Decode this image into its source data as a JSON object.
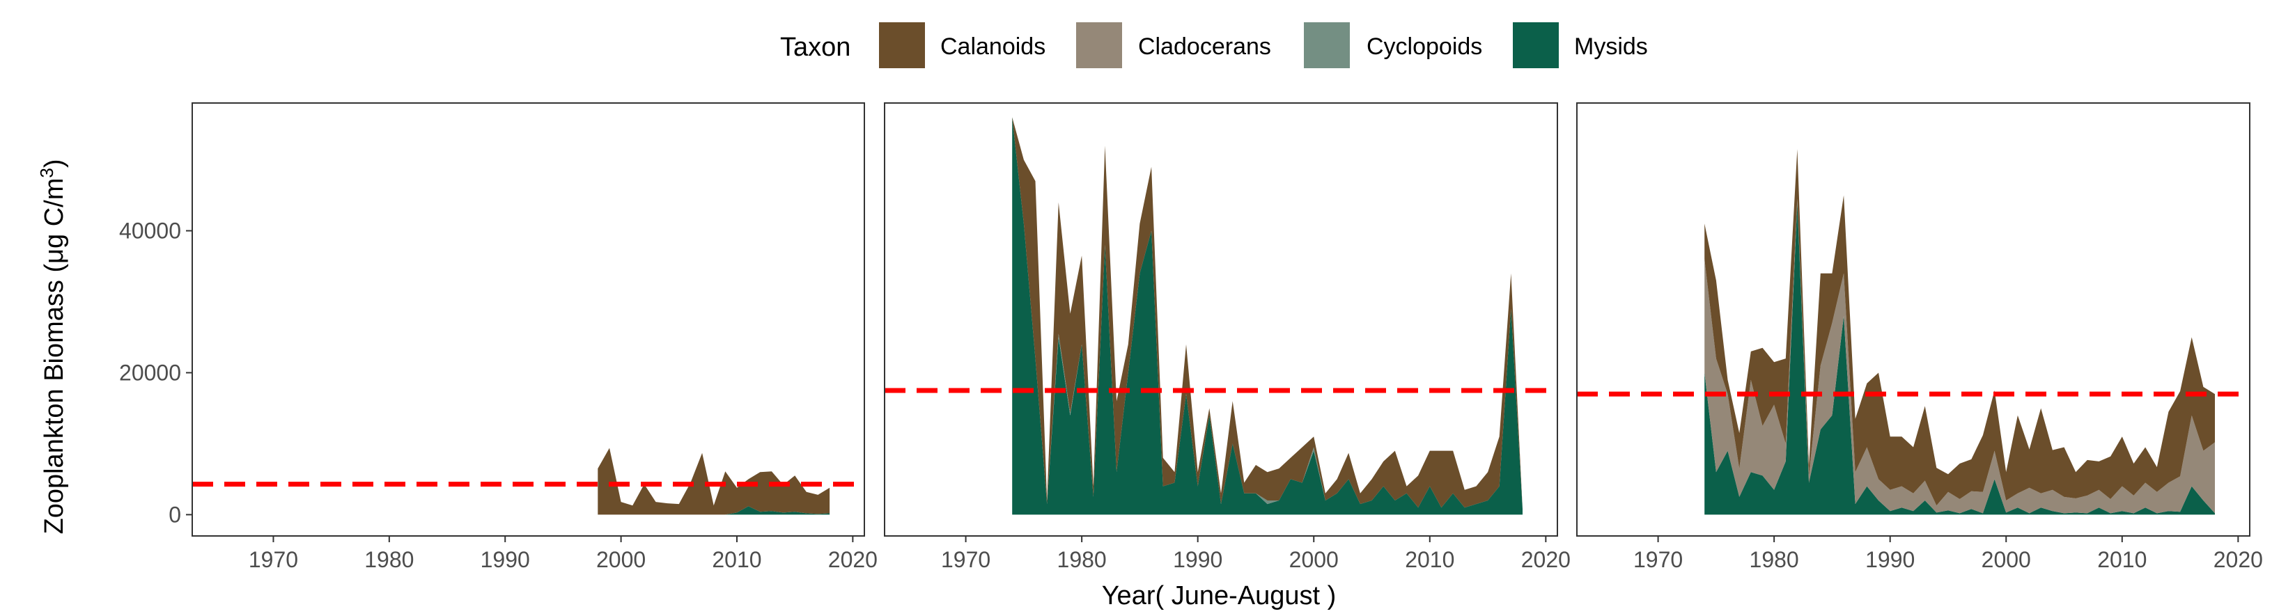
{
  "legend": {
    "title": "Taxon",
    "items": [
      {
        "label": "Calanoids",
        "color": "#6B4E2B"
      },
      {
        "label": "Cladocerans",
        "color": "#958878"
      },
      {
        "label": "Cyclopoids",
        "color": "#748F83"
      },
      {
        "label": "Mysids",
        "color": "#0B604A"
      }
    ]
  },
  "axes": {
    "xlabel": "Year( June-August )",
    "ylabel_text": "Zooplankton Biomass (μg C/m",
    "ylabel_sup": "3",
    "ylabel_close": ")"
  },
  "colors": {
    "Calanoids": "#6B4E2B",
    "Cladocerans": "#958878",
    "Cyclopoids": "#748F83",
    "Mysids": "#0B604A",
    "reference_line": "#FF0000"
  },
  "chart_data": {
    "type": "area",
    "stacking": "stacked",
    "x_ticks": [
      1970,
      1980,
      1990,
      2000,
      2010,
      2020
    ],
    "y_ticks": [
      0,
      20000,
      40000
    ],
    "y_tick_labels": [
      "0",
      "20000",
      "40000"
    ],
    "xlim": [
      1963,
      2021
    ],
    "ylim": [
      -3000,
      58000
    ],
    "grid": false,
    "legend_position": "top",
    "panels": [
      {
        "reference_line": 4300,
        "x": [
          1998,
          1999,
          2000,
          2001,
          2002,
          2003,
          2004,
          2005,
          2006,
          2007,
          2008,
          2009,
          2010,
          2011,
          2012,
          2013,
          2014,
          2015,
          2016,
          2017,
          2018
        ],
        "series": [
          {
            "name": "Mysids",
            "values": [
              0,
              0,
              0,
              0,
              0,
              0,
              0,
              0,
              0,
              0,
              0,
              0,
              300,
              1200,
              400,
              500,
              300,
              400,
              200,
              100,
              200
            ]
          },
          {
            "name": "Cyclopoids",
            "values": [
              0,
              0,
              0,
              0,
              0,
              0,
              0,
              0,
              0,
              0,
              0,
              0,
              0,
              0,
              0,
              0,
              0,
              0,
              0,
              0,
              0
            ]
          },
          {
            "name": "Cladocerans",
            "values": [
              0,
              0,
              0,
              0,
              0,
              0,
              0,
              0,
              0,
              0,
              0,
              0,
              0,
              0,
              0,
              0,
              0,
              0,
              0,
              0,
              0
            ]
          },
          {
            "name": "Calanoids",
            "values": [
              6500,
              9400,
              1800,
              1300,
              4300,
              1800,
              1600,
              1500,
              4500,
              8700,
              1300,
              6100,
              3500,
              3800,
              5600,
              5600,
              3900,
              5100,
              3000,
              2700,
              3600
            ]
          }
        ]
      },
      {
        "reference_line": 17500,
        "x": [
          1974,
          1975,
          1976,
          1977,
          1978,
          1979,
          1980,
          1981,
          1982,
          1983,
          1984,
          1985,
          1986,
          1987,
          1988,
          1989,
          1990,
          1991,
          1992,
          1993,
          1994,
          1995,
          1996,
          1997,
          1998,
          1999,
          2000,
          2001,
          2002,
          2003,
          2004,
          2005,
          2006,
          2007,
          2008,
          2009,
          2010,
          2011,
          2012,
          2013,
          2014,
          2015,
          2016,
          2017,
          2018
        ],
        "series": [
          {
            "name": "Mysids",
            "values": [
              56000,
              41000,
              22000,
              1500,
              25000,
              14000,
              24000,
              2500,
              38000,
              6000,
              20000,
              34000,
              40000,
              4000,
              4500,
              17000,
              4000,
              14000,
              1500,
              10000,
              3000,
              3000,
              1500,
              2000,
              5000,
              4500,
              9000,
              2000,
              3000,
              5000,
              1500,
              2000,
              4000,
              2000,
              3000,
              1000,
              4000,
              1000,
              3000,
              1000,
              1500,
              2000,
              4000,
              29000,
              800
            ]
          },
          {
            "name": "Cyclopoids",
            "values": [
              0,
              0,
              0,
              0,
              500,
              300,
              0,
              0,
              0,
              0,
              0,
              0,
              0,
              0,
              0,
              0,
              0,
              0,
              0,
              0,
              0,
              0,
              500,
              0,
              0,
              0,
              500,
              0,
              0,
              0,
              0,
              0,
              0,
              0,
              0,
              0,
              0,
              0,
              0,
              0,
              0,
              0,
              0,
              0,
              0
            ]
          },
          {
            "name": "Cladocerans",
            "values": [
              0,
              0,
              0,
              0,
              0,
              0,
              0,
              0,
              0,
              0,
              0,
              0,
              0,
              0,
              0,
              0,
              0,
              0,
              0,
              0,
              0,
              0,
              0,
              0,
              0,
              0,
              0,
              0,
              0,
              0,
              0,
              0,
              0,
              0,
              0,
              0,
              0,
              0,
              0,
              0,
              0,
              0,
              0,
              0,
              0
            ]
          },
          {
            "name": "Calanoids",
            "values": [
              0,
              9000,
              25000,
              500,
              18500,
              14000,
              12500,
              1500,
              14000,
              10000,
              4000,
              7000,
              9000,
              4000,
              1500,
              7000,
              2000,
              1000,
              1500,
              6000,
              1500,
              4000,
              4000,
              4500,
              3000,
              5000,
              1500,
              1000,
              2000,
              3700,
              1500,
              3000,
              3500,
              7000,
              1000,
              4500,
              5000,
              8000,
              6000,
              2500,
              2500,
              4000,
              7000,
              5000,
              0
            ]
          }
        ]
      },
      {
        "reference_line": 17000,
        "x": [
          1974,
          1975,
          1976,
          1977,
          1978,
          1979,
          1980,
          1981,
          1982,
          1983,
          1984,
          1985,
          1986,
          1987,
          1988,
          1989,
          1990,
          1991,
          1992,
          1993,
          1994,
          1995,
          1996,
          1997,
          1998,
          1999,
          2000,
          2001,
          2002,
          2003,
          2004,
          2005,
          2006,
          2007,
          2008,
          2009,
          2010,
          2011,
          2012,
          2013,
          2014,
          2015,
          2016,
          2017,
          2018
        ],
        "series": [
          {
            "name": "Mysids",
            "values": [
              20000,
              6000,
              9000,
              2500,
              6000,
              5500,
              3500,
              7500,
              44000,
              4500,
              12000,
              14000,
              28000,
              1500,
              4000,
              2000,
              500,
              1000,
              500,
              2000,
              300,
              600,
              200,
              800,
              200,
              5000,
              300,
              1000,
              200,
              1000,
              500,
              200,
              300,
              200,
              1000,
              200,
              500,
              200,
              1000,
              200,
              500,
              400,
              4000,
              2000,
              200
            ]
          },
          {
            "name": "Cyclopoids",
            "values": [
              0,
              0,
              0,
              0,
              0,
              0,
              0,
              0,
              0,
              0,
              0,
              0,
              0,
              0,
              0,
              0,
              0,
              0,
              0,
              0,
              0,
              0,
              0,
              0,
              0,
              0,
              0,
              0,
              0,
              0,
              0,
              0,
              0,
              0,
              0,
              0,
              0,
              0,
              0,
              0,
              0,
              0,
              0,
              0,
              0
            ]
          },
          {
            "name": "Cladocerans",
            "values": [
              16000,
              16000,
              8000,
              4000,
              13000,
              7000,
              12000,
              2500,
              500,
              1000,
              9000,
              13000,
              6000,
              4500,
              5500,
              3000,
              3000,
              3000,
              2500,
              2800,
              1000,
              2600,
              2000,
              2500,
              3000,
              4000,
              1700,
              2000,
              3600,
              2000,
              3000,
              2300,
              2000,
              2500,
              2500,
              2000,
              3500,
              2500,
              3500,
              3000,
              4000,
              5000,
              10000,
              7000,
              10000
            ]
          },
          {
            "name": "Calanoids",
            "values": [
              5000,
              11000,
              2000,
              5000,
              4000,
              11000,
              6000,
              12000,
              7000,
              1500,
              13000,
              7000,
              11000,
              7500,
              9000,
              15000,
              7500,
              7000,
              6500,
              10500,
              5300,
              2500,
              5000,
              4500,
              8000,
              8500,
              4000,
              11000,
              5400,
              12000,
              5600,
              7000,
              3700,
              5000,
              4000,
              6000,
              7000,
              4500,
              5000,
              3500,
              10000,
              12000,
              11000,
              9000,
              6800
            ]
          }
        ]
      }
    ]
  }
}
